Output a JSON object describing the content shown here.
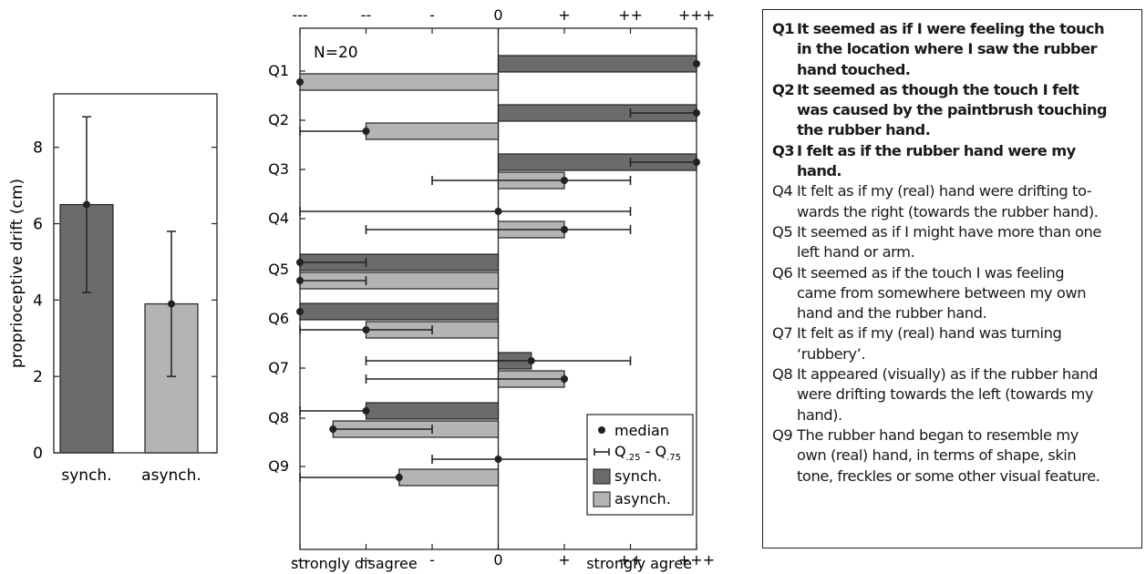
{
  "chart_data": [
    {
      "type": "bar",
      "ylabel": "proprioceptive drift (cm)",
      "ylim": [
        0,
        9.4
      ],
      "yticks": [
        "0",
        "2",
        "4",
        "6",
        "8"
      ],
      "categories": [
        "synch.",
        "asynch."
      ],
      "values": [
        6.5,
        3.9
      ],
      "error_low": [
        4.2,
        2.0
      ],
      "error_high": [
        8.8,
        5.8
      ],
      "colors": [
        "#6b6b6b",
        "#b4b4b4"
      ]
    },
    {
      "type": "bar",
      "orientation": "horizontal",
      "annotation": "N=20",
      "xlim": [
        -3,
        3
      ],
      "x_tick_labels": [
        "---",
        "--",
        "-",
        "0",
        "+",
        "++",
        "+++"
      ],
      "xlabel_left": "strongly disagree",
      "xlabel_right": "strongly agree",
      "categories": [
        "Q1",
        "Q2",
        "Q3",
        "Q4",
        "Q5",
        "Q6",
        "Q7",
        "Q8",
        "Q9"
      ],
      "series": [
        {
          "name": "synch.",
          "color": "#6b6b6b",
          "values": [
            3,
            3,
            3,
            0,
            -3,
            -3,
            0.5,
            -2,
            0
          ],
          "q25": [
            3,
            2,
            2,
            -3,
            -3,
            -3,
            -2,
            -3,
            -1
          ],
          "q75": [
            3,
            3,
            3,
            2,
            -2,
            -3,
            2,
            -2,
            2
          ]
        },
        {
          "name": "asynch.",
          "color": "#b4b4b4",
          "values": [
            -3,
            -2,
            1,
            1,
            -3,
            -2,
            1,
            -2.5,
            -1.5
          ],
          "q25": [
            -3,
            -3,
            -1,
            -2,
            -3,
            -3,
            -2,
            -2.5,
            -3
          ],
          "q75": [
            -3,
            -2,
            2,
            2,
            -2,
            -1,
            1,
            -1,
            -1.5
          ]
        }
      ],
      "legend": {
        "position": "bottom-right",
        "median_label": "median",
        "q_label_prefix": "Q",
        "q_low_sub": ".25",
        "q_sep": " - ",
        "q_high_sub": ".75",
        "synch_label": "synch.",
        "asynch_label": "asynch."
      }
    }
  ],
  "questions": [
    {
      "id": "Q1",
      "bold": true,
      "lines": [
        "It seemed as if I were feeling the touch",
        "in the location where I saw the rubber",
        "hand touched."
      ]
    },
    {
      "id": "Q2",
      "bold": true,
      "lines": [
        "It seemed as though the touch I felt",
        "was caused by the paintbrush touching",
        "the rubber hand."
      ]
    },
    {
      "id": "Q3",
      "bold": true,
      "lines": [
        "I felt as if the rubber hand were my",
        "hand."
      ]
    },
    {
      "id": "Q4",
      "bold": false,
      "lines": [
        "It felt as if my (real) hand were drifting to-",
        "wards the right (towards the rubber hand)."
      ]
    },
    {
      "id": "Q5",
      "bold": false,
      "lines": [
        "It seemed as if I might have more than one",
        "left hand or arm."
      ]
    },
    {
      "id": "Q6",
      "bold": false,
      "lines": [
        "It seemed as if the touch I was feeling",
        "came from somewhere between my own",
        "hand and the rubber hand."
      ]
    },
    {
      "id": "Q7",
      "bold": false,
      "lines": [
        "It felt as if my (real) hand was turning",
        "‘rubbery’."
      ]
    },
    {
      "id": "Q8",
      "bold": false,
      "lines": [
        "It appeared (visually) as if the rubber hand",
        "were drifting towards the left (towards my",
        "hand)."
      ]
    },
    {
      "id": "Q9",
      "bold": false,
      "lines": [
        "The rubber hand began to resemble my",
        "own (real) hand, in terms of shape, skin",
        "tone, freckles or some other visual feature."
      ]
    }
  ]
}
